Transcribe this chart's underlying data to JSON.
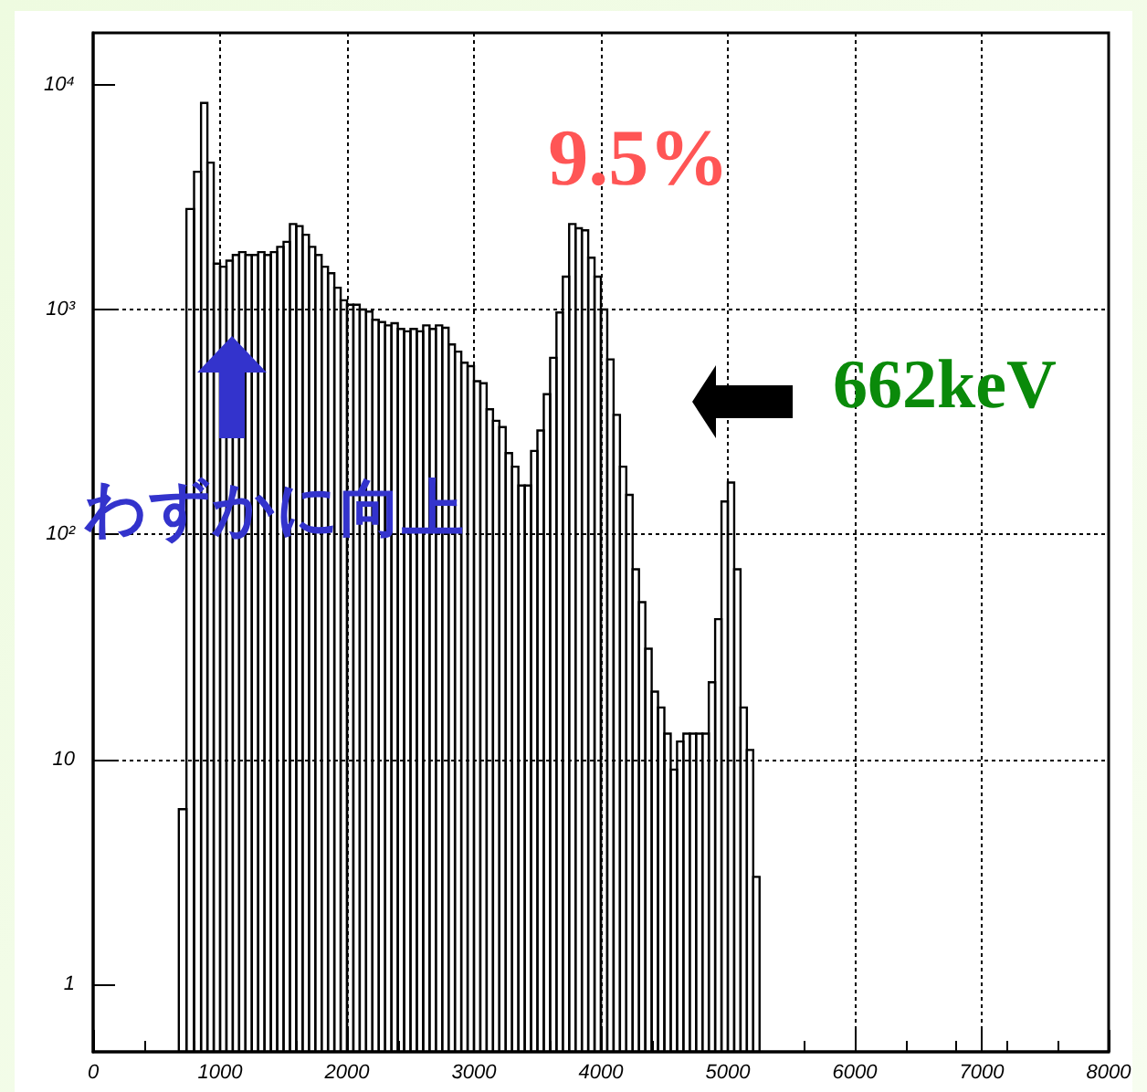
{
  "chart_data": {
    "type": "histogram",
    "bins": [
      675,
      735,
      795,
      850,
      900,
      950,
      1000,
      1050,
      1100,
      1150,
      1200,
      1250,
      1300,
      1350,
      1400,
      1450,
      1500,
      1550,
      1600,
      1650,
      1700,
      1750,
      1800,
      1850,
      1900,
      1950,
      2000,
      2050,
      2100,
      2150,
      2200,
      2250,
      2300,
      2350,
      2400,
      2450,
      2500,
      2550,
      2600,
      2650,
      2700,
      2750,
      2800,
      2850,
      2900,
      2950,
      3000,
      3050,
      3100,
      3150,
      3200,
      3250,
      3300,
      3350,
      3400,
      3450,
      3500,
      3550,
      3600,
      3650,
      3700,
      3750,
      3800,
      3850,
      3900,
      3950,
      4000,
      4050,
      4100,
      4150,
      4200,
      4250,
      4300,
      4350,
      4400,
      4450,
      4500,
      4550,
      4600,
      4650,
      4700,
      4750,
      4800,
      4850,
      4900,
      4950,
      5000,
      5050,
      5100,
      5150,
      5200,
      5250
    ],
    "values": [
      6,
      2800,
      4100,
      8300,
      4500,
      1600,
      1550,
      1650,
      1750,
      1800,
      1750,
      1750,
      1800,
      1750,
      1800,
      1900,
      2000,
      2400,
      2350,
      2150,
      1900,
      1750,
      1550,
      1450,
      1250,
      1100,
      1050,
      1050,
      1000,
      980,
      900,
      880,
      850,
      870,
      820,
      800,
      820,
      800,
      850,
      820,
      850,
      830,
      700,
      650,
      580,
      560,
      480,
      470,
      360,
      320,
      300,
      230,
      200,
      165,
      165,
      235,
      290,
      420,
      610,
      970,
      1400,
      2400,
      2300,
      2250,
      1700,
      1400,
      1000,
      600,
      340,
      200,
      150,
      70,
      50,
      31,
      20,
      17,
      13,
      9,
      12,
      13,
      13,
      13,
      13,
      22,
      42,
      140,
      170,
      70,
      17,
      11,
      3
    ],
    "color": "#000000",
    "xlim": [
      0,
      8000
    ],
    "xticks": [
      0,
      1000,
      2000,
      3000,
      4000,
      5000,
      6000,
      7000,
      8000
    ],
    "ylim": [
      0.5,
      17000
    ],
    "log": true,
    "yticks": [
      1,
      10,
      {
        "value": 100,
        "label": "10²"
      },
      {
        "value": 1000,
        "label": "10³"
      },
      {
        "value": 10000,
        "label": "10⁴"
      }
    ],
    "grid": true,
    "annotations": [
      {
        "text": "9.5%",
        "x": 3800,
        "y": 2400
      },
      "662keV",
      "わずかに向上"
    ]
  }
}
